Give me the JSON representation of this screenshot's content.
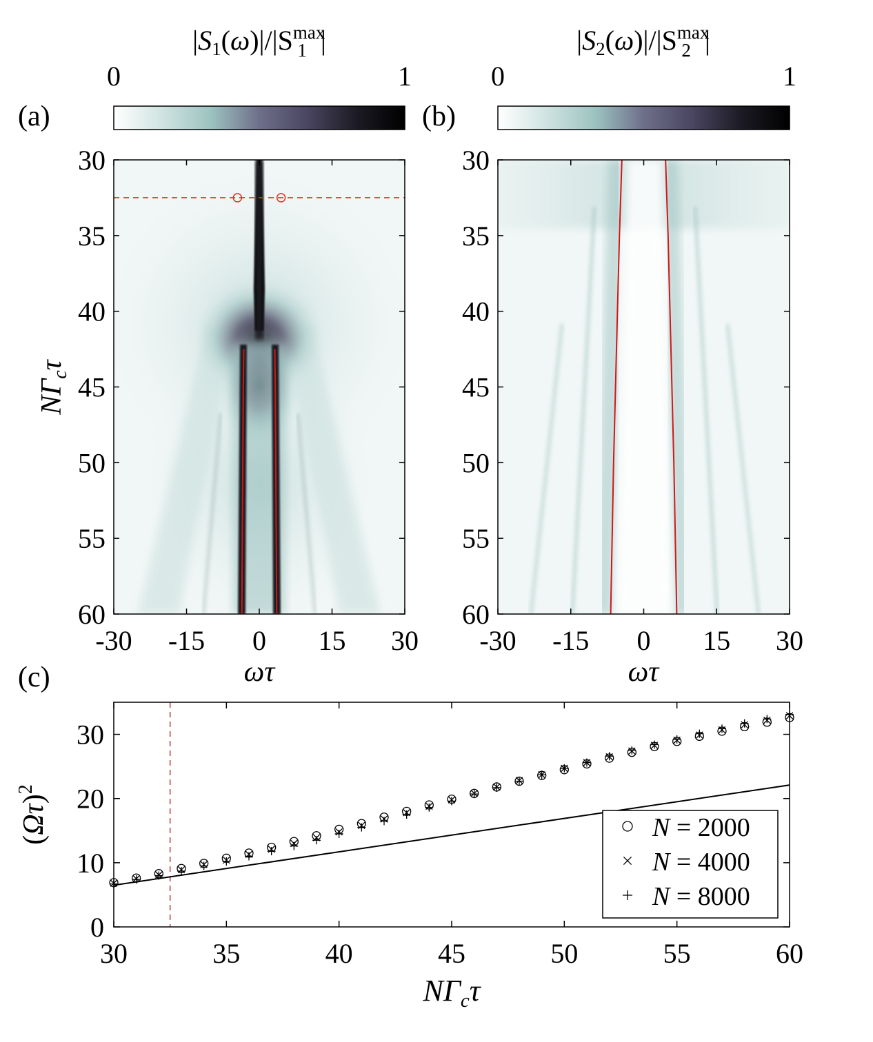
{
  "chart_data": [
    {
      "panel": "(a)",
      "type": "heatmap",
      "colorbar": {
        "title_parts": [
          "|S",
          "1",
          "(ω)|/|S",
          "max",
          "1",
          "|"
        ],
        "min_label": "0",
        "max_label": "1",
        "colors": [
          "#ffffff",
          "#cfe3e1",
          "#9dc3c1",
          "#6e6f8a",
          "#4a4560",
          "#1c1b24",
          "#000000"
        ]
      },
      "x": {
        "label": "ωτ",
        "range": [
          -30,
          30
        ],
        "ticks": [
          -30,
          -15,
          0,
          15,
          30
        ],
        "tick_labels": [
          "-30",
          "-15",
          "0",
          "15",
          "30"
        ]
      },
      "y": {
        "label": "NΓcτ",
        "range": [
          30,
          60
        ],
        "ticks": [
          30,
          35,
          40,
          45,
          50,
          55,
          60
        ],
        "tick_labels": [
          "30",
          "35",
          "40",
          "45",
          "50",
          "55",
          "60"
        ],
        "reversed": true
      },
      "reference_line_y": 32.5,
      "marked_points": [
        {
          "x": -4.5,
          "y": 32.5
        },
        {
          "x": 4.5,
          "y": 32.5
        }
      ],
      "peak_lines": [
        {
          "points": [
            [
              -3.2,
              42.5
            ],
            [
              -3.3,
              45
            ],
            [
              -3.4,
              50
            ],
            [
              -3.5,
              55
            ],
            [
              -3.6,
              60
            ]
          ]
        },
        {
          "points": [
            [
              3.2,
              42.5
            ],
            [
              3.3,
              45
            ],
            [
              3.4,
              50
            ],
            [
              3.5,
              55
            ],
            [
              3.6,
              60
            ]
          ]
        }
      ]
    },
    {
      "panel": "(b)",
      "type": "heatmap",
      "colorbar": {
        "title_parts": [
          "|S",
          "2",
          "(ω)|/|S",
          "max",
          "2",
          "|"
        ],
        "min_label": "0",
        "max_label": "1",
        "colors": [
          "#ffffff",
          "#cfe3e1",
          "#9dc3c1",
          "#6e6f8a",
          "#4a4560",
          "#1c1b24",
          "#000000"
        ]
      },
      "x": {
        "label": "ωτ",
        "range": [
          -30,
          30
        ],
        "ticks": [
          -30,
          -15,
          0,
          15,
          30
        ],
        "tick_labels": [
          "-30",
          "-15",
          "0",
          "15",
          "30"
        ]
      },
      "y": {
        "label": "",
        "range": [
          30,
          60
        ],
        "ticks": [
          30,
          35,
          40,
          45,
          50,
          55,
          60
        ],
        "tick_labels": [
          "30",
          "35",
          "40",
          "45",
          "50",
          "55",
          "60"
        ],
        "reversed": true
      },
      "peak_lines": [
        {
          "points": [
            [
              -4.5,
              30
            ],
            [
              -5.0,
              35
            ],
            [
              -5.4,
              40
            ],
            [
              -5.8,
              45
            ],
            [
              -6.2,
              50
            ],
            [
              -6.5,
              55
            ],
            [
              -6.8,
              60
            ]
          ]
        },
        {
          "points": [
            [
              4.5,
              30
            ],
            [
              5.0,
              35
            ],
            [
              5.4,
              40
            ],
            [
              5.8,
              45
            ],
            [
              6.2,
              50
            ],
            [
              6.5,
              55
            ],
            [
              6.8,
              60
            ]
          ]
        }
      ]
    },
    {
      "panel": "(c)",
      "type": "scatter",
      "x": {
        "label": "NΓcτ",
        "range": [
          30,
          60
        ],
        "ticks": [
          30,
          35,
          40,
          45,
          50,
          55,
          60
        ],
        "tick_labels": [
          "30",
          "35",
          "40",
          "45",
          "50",
          "55",
          "60"
        ]
      },
      "y": {
        "label": "(Ωτ)²",
        "range": [
          0,
          35
        ],
        "ticks": [
          0,
          10,
          20,
          30
        ],
        "tick_labels": [
          "0",
          "10",
          "20",
          "30"
        ]
      },
      "reference_line_x": 32.5,
      "legend": {
        "position": "bottom-right"
      },
      "x_values": [
        30,
        31,
        32,
        33,
        34,
        35,
        36,
        37,
        38,
        39,
        40,
        41,
        42,
        43,
        44,
        45,
        46,
        47,
        48,
        49,
        50,
        51,
        52,
        53,
        54,
        55,
        56,
        57,
        58,
        59,
        60
      ],
      "series": [
        {
          "name_parts": [
            "N",
            " = 2000"
          ],
          "marker": "circle",
          "values": [
            6.9,
            7.6,
            8.3,
            9.1,
            9.9,
            10.7,
            11.5,
            12.4,
            13.3,
            14.2,
            15.2,
            16.1,
            17.1,
            18.0,
            19.0,
            19.9,
            20.8,
            21.8,
            22.7,
            23.6,
            24.5,
            25.4,
            26.3,
            27.2,
            28.1,
            28.9,
            29.7,
            30.5,
            31.2,
            31.9,
            32.6
          ]
        },
        {
          "name_parts": [
            "N",
            " = 4000"
          ],
          "marker": "cross",
          "values": [
            6.8,
            7.5,
            8.1,
            8.9,
            9.7,
            10.4,
            11.3,
            12.1,
            13.0,
            13.9,
            14.8,
            15.8,
            16.8,
            17.8,
            18.8,
            19.8,
            20.8,
            21.8,
            22.8,
            23.7,
            24.7,
            25.6,
            26.5,
            27.4,
            28.3,
            29.1,
            29.9,
            30.7,
            31.5,
            32.2,
            32.9
          ]
        },
        {
          "name_parts": [
            "N",
            " = 8000"
          ],
          "marker": "plus",
          "values": [
            6.7,
            7.4,
            8.0,
            8.7,
            9.5,
            10.2,
            11.0,
            11.8,
            12.6,
            13.5,
            14.5,
            15.5,
            16.5,
            17.5,
            18.6,
            19.6,
            20.7,
            21.7,
            22.7,
            23.7,
            24.7,
            25.6,
            26.6,
            27.5,
            28.4,
            29.2,
            30.1,
            30.9,
            31.7,
            32.4,
            33.1
          ]
        }
      ],
      "line": {
        "x": [
          30,
          60
        ],
        "y": [
          6.5,
          22.1
        ]
      }
    }
  ]
}
